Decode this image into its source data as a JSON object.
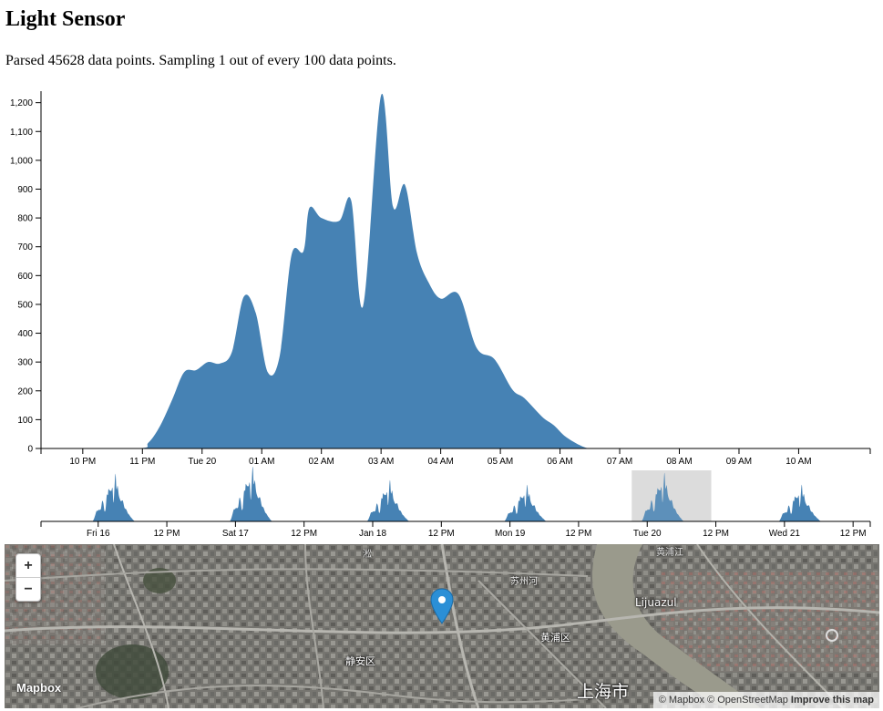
{
  "page": {
    "title": "Light Sensor",
    "status": "Parsed 45628 data points. Sampling 1 out of every 100 data points."
  },
  "chart_data": [
    {
      "type": "area",
      "color": "#4682b4",
      "ylim": [
        0,
        1240
      ],
      "y_ticks": [
        "0",
        "100",
        "200",
        "300",
        "400",
        "500",
        "600",
        "700",
        "800",
        "900",
        "1,000",
        "1,100",
        "1,200"
      ],
      "x_ticks": [
        "10 PM",
        "11 PM",
        "Tue 20",
        "01 AM",
        "02 AM",
        "03 AM",
        "04 AM",
        "05 AM",
        "06 AM",
        "07 AM",
        "08 AM",
        "09 AM",
        "10 AM"
      ],
      "x_hours": [
        -2,
        -1,
        0,
        1,
        2,
        3,
        4,
        5,
        6,
        7,
        8,
        9,
        10
      ],
      "xlim_hours": [
        -2.7,
        11.2
      ],
      "series": [
        {
          "x_hours": [
            -2.7,
            -1.1,
            -0.9,
            -0.7,
            -0.5,
            -0.3,
            -0.1,
            0.1,
            0.3,
            0.5,
            0.7,
            0.9,
            1.1,
            1.3,
            1.5,
            1.7,
            1.8,
            2.0,
            2.3,
            2.5,
            2.7,
            3.0,
            3.2,
            3.4,
            3.6,
            3.8,
            4.0,
            4.3,
            4.6,
            4.9,
            5.2,
            5.4,
            5.7,
            5.9,
            6.1,
            6.4,
            6.6,
            6.9,
            7.2,
            7.5,
            7.8,
            8.0,
            8.3,
            8.6,
            8.9,
            9.1,
            9.3,
            11.2
          ],
          "values": [
            0,
            0,
            20,
            80,
            170,
            265,
            272,
            300,
            295,
            335,
            527,
            470,
            265,
            320,
            672,
            685,
            835,
            800,
            790,
            860,
            495,
            1225,
            840,
            915,
            680,
            575,
            520,
            535,
            350,
            310,
            205,
            175,
            110,
            80,
            40,
            5,
            0,
            0,
            0,
            0,
            0,
            0,
            0,
            0,
            0,
            0,
            0,
            0
          ]
        }
      ]
    },
    {
      "type": "area",
      "color": "#4682b4",
      "x_ticks": [
        "Fri 16",
        "12 PM",
        "Sat 17",
        "12 PM",
        "Jan 18",
        "12 PM",
        "Mon 19",
        "12 PM",
        "Tue 20",
        "12 PM",
        "Wed 21",
        "12 PM"
      ],
      "selection_ticks": [
        "Tue 20",
        "12 PM"
      ],
      "xlim_hours": [
        -10,
        135
      ],
      "days": [
        0,
        1,
        2,
        3,
        4,
        5
      ],
      "day_peaks": [
        52,
        60,
        45,
        40,
        53,
        40
      ]
    }
  ],
  "map": {
    "zoom_in": "+",
    "zoom_out": "−",
    "logo": "Mapbox",
    "labels": [
      "Lijuazul",
      "黄浦区",
      "静安区",
      "上海市",
      "苏州河",
      "黄浦江",
      "淞"
    ],
    "attribution_prefix": "© Mapbox © ",
    "attribution_osm": "OpenStreetMap",
    "attribution_improve": "Improve this map",
    "pin_icon": "map-marker-icon",
    "pin_color": "#2b8fd6"
  }
}
